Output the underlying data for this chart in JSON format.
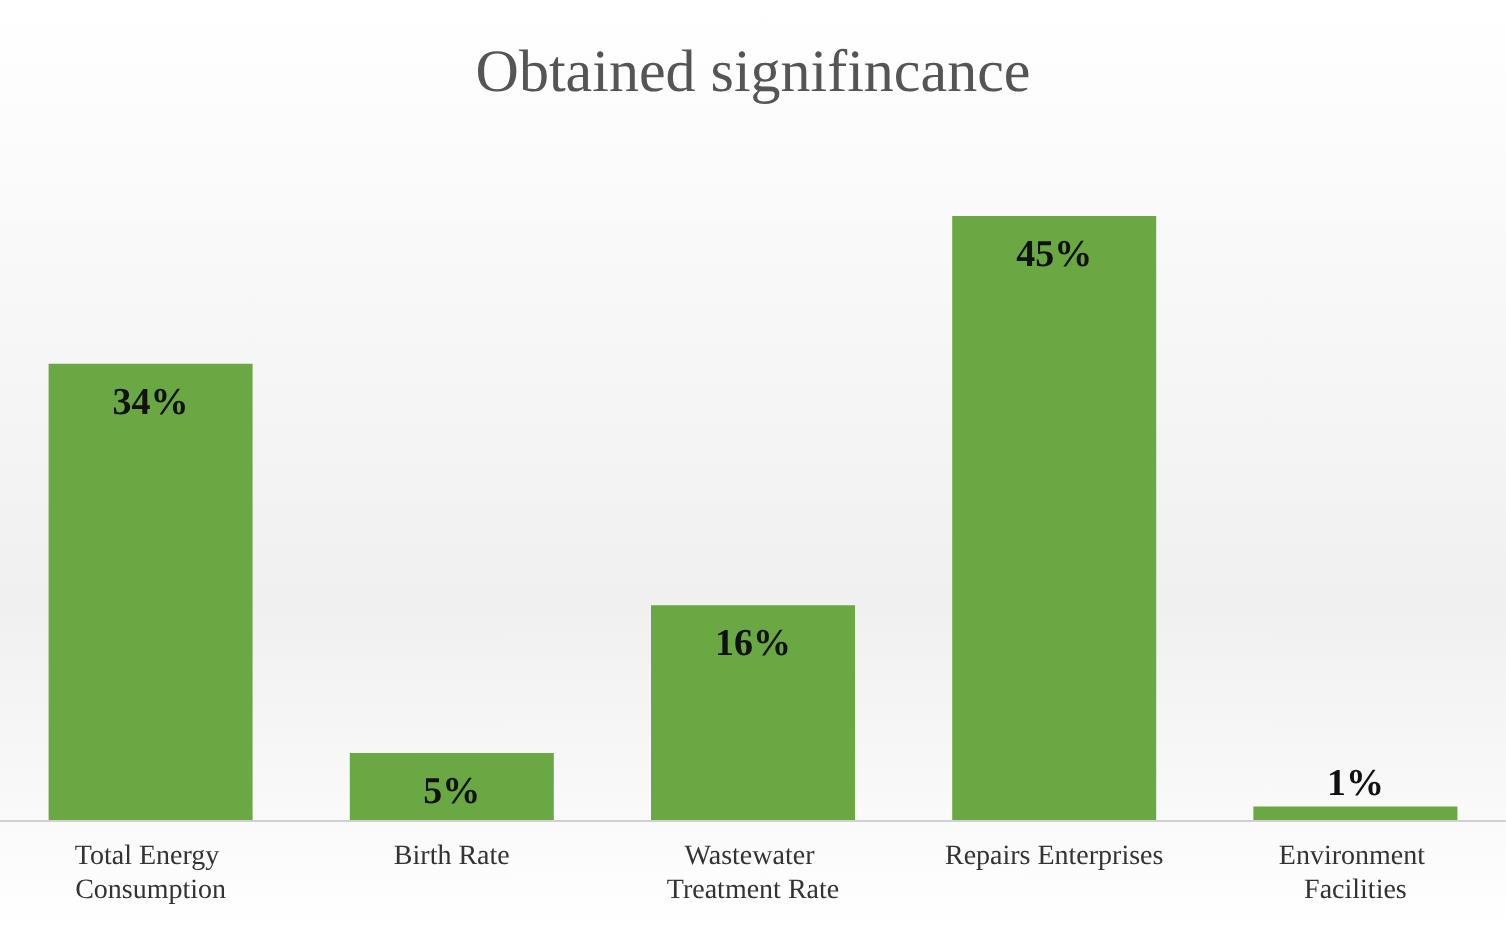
{
  "chart_data": {
    "type": "bar",
    "title": "Obtained signifincance",
    "categories": [
      "Total Energy Consumption",
      "Birth Rate",
      "Wastewater Treatment Rate",
      "Repairs Enterprises",
      "Environment Facilities"
    ],
    "values": [
      34,
      5,
      16,
      45,
      1
    ],
    "value_labels": [
      "34%",
      "5%",
      "16%",
      "45%",
      "1%"
    ],
    "color": "#6aa843"
  }
}
